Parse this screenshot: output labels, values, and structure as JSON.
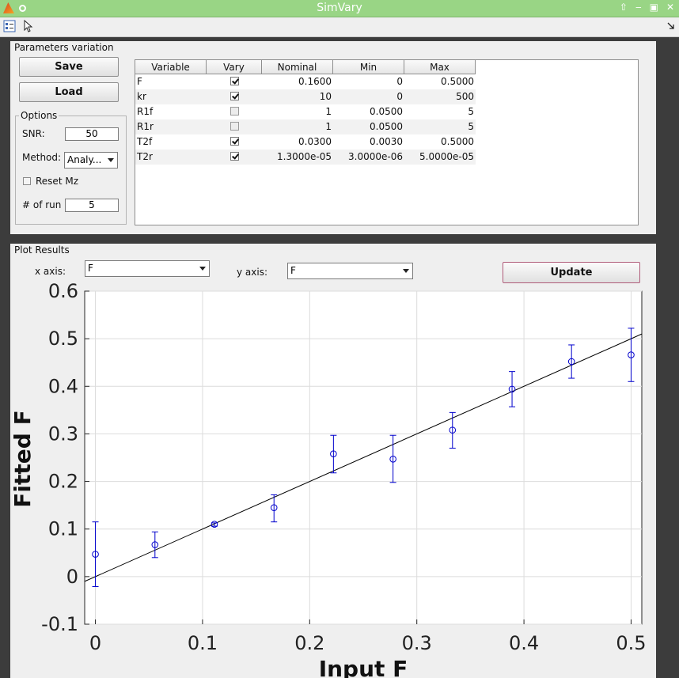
{
  "window": {
    "title": "SimVary"
  },
  "params_panel": {
    "title": "Parameters variation",
    "save_label": "Save",
    "load_label": "Load",
    "options": {
      "title": "Options",
      "snr_label": "SNR:",
      "snr_value": "50",
      "method_label": "Method:",
      "method_value": "Analy...",
      "reset_mz_label": "Reset Mz",
      "reset_mz_checked": false,
      "runs_label": "# of run",
      "runs_value": "5"
    },
    "table": {
      "headers": [
        "Variable",
        "Vary",
        "Nominal",
        "Min",
        "Max"
      ],
      "rows": [
        {
          "variable": "F",
          "vary": true,
          "nominal": "0.1600",
          "min": "0",
          "max": "0.5000"
        },
        {
          "variable": "kr",
          "vary": true,
          "nominal": "10",
          "min": "0",
          "max": "500"
        },
        {
          "variable": "R1f",
          "vary": false,
          "nominal": "1",
          "min": "0.0500",
          "max": "5"
        },
        {
          "variable": "R1r",
          "vary": false,
          "nominal": "1",
          "min": "0.0500",
          "max": "5"
        },
        {
          "variable": "T2f",
          "vary": true,
          "nominal": "0.0300",
          "min": "0.0030",
          "max": "0.5000"
        },
        {
          "variable": "T2r",
          "vary": true,
          "nominal": "1.3000e-05",
          "min": "3.0000e-06",
          "max": "5.0000e-05"
        }
      ]
    }
  },
  "plot_panel": {
    "title": "Plot Results",
    "x_axis_label": "x axis:",
    "x_axis_value": "F",
    "y_axis_label": "y axis:",
    "y_axis_value": "F",
    "update_label": "Update"
  },
  "chart_data": {
    "type": "scatter",
    "xlabel": "Input F",
    "ylabel": "Fitted F",
    "xlim": [
      -0.01,
      0.51
    ],
    "ylim": [
      -0.1,
      0.6
    ],
    "xticks": [
      "0",
      "0.1",
      "0.2",
      "0.3",
      "0.4",
      "0.5"
    ],
    "yticks": [
      "-0.1",
      "0",
      "0.1",
      "0.2",
      "0.3",
      "0.4",
      "0.5",
      "0.6"
    ],
    "grid": true,
    "marker_color": "#0000cc",
    "line_color": "#000000",
    "points": [
      {
        "x": 0.0,
        "y": 0.047,
        "err_low": -0.021,
        "err_high": 0.115
      },
      {
        "x": 0.0556,
        "y": 0.067,
        "err_low": 0.04,
        "err_high": 0.094
      },
      {
        "x": 0.1111,
        "y": 0.11,
        "err_low": 0.106,
        "err_high": 0.113
      },
      {
        "x": 0.1667,
        "y": 0.145,
        "err_low": 0.115,
        "err_high": 0.172
      },
      {
        "x": 0.2222,
        "y": 0.258,
        "err_low": 0.218,
        "err_high": 0.297
      },
      {
        "x": 0.2778,
        "y": 0.247,
        "err_low": 0.198,
        "err_high": 0.297
      },
      {
        "x": 0.3333,
        "y": 0.308,
        "err_low": 0.27,
        "err_high": 0.345
      },
      {
        "x": 0.3889,
        "y": 0.394,
        "err_low": 0.357,
        "err_high": 0.431
      },
      {
        "x": 0.4444,
        "y": 0.452,
        "err_low": 0.417,
        "err_high": 0.487
      },
      {
        "x": 0.5,
        "y": 0.466,
        "err_low": 0.41,
        "err_high": 0.522
      }
    ],
    "identity_line": {
      "x": [
        -0.01,
        0.51
      ],
      "y": [
        -0.01,
        0.51
      ]
    }
  }
}
